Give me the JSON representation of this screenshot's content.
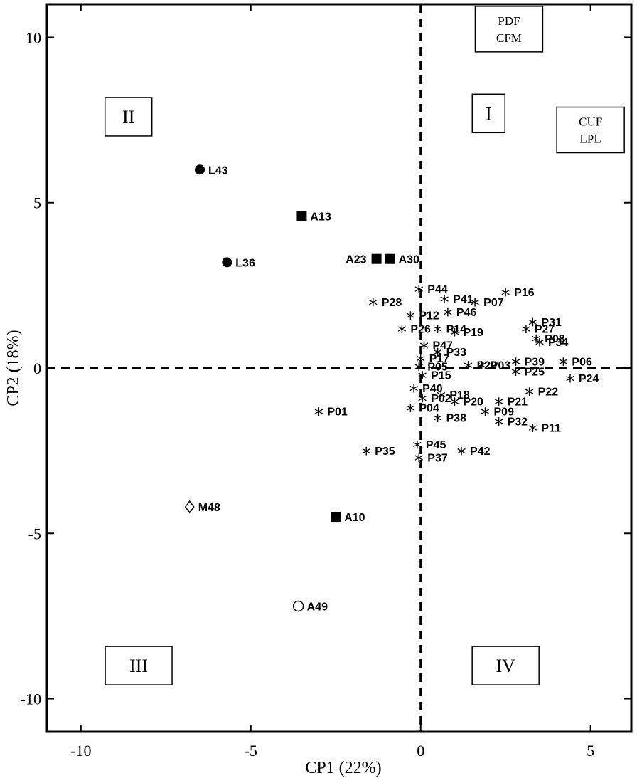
{
  "chart_data": {
    "type": "scatter",
    "xlabel": "CP1 (22%)",
    "ylabel": "CP2 (18%)",
    "xlim": [
      -11,
      6.2
    ],
    "ylim": [
      -11,
      11
    ],
    "xticks": [
      -10,
      -5,
      0,
      5
    ],
    "yticks": [
      -10,
      -5,
      0,
      5,
      10
    ],
    "xtick_labels": [
      "-10",
      "-5",
      "0",
      "5"
    ],
    "ytick_labels": [
      "-10",
      "-5",
      "0",
      "5",
      "10"
    ],
    "grid": false,
    "quadrants": [
      "I",
      "II",
      "III",
      "IV"
    ],
    "annotation_boxes": [
      {
        "lines": [
          "PDF",
          "CFM"
        ],
        "x": 2.6,
        "y": 10.25
      },
      {
        "lines": [
          "CUF",
          "LPL"
        ],
        "x": 5.0,
        "y": 7.2
      }
    ],
    "groups": [
      {
        "marker": "circle-filled",
        "points": [
          {
            "label": "L43",
            "x": -6.5,
            "y": 6.0
          },
          {
            "label": "L36",
            "x": -5.7,
            "y": 3.2
          }
        ]
      },
      {
        "marker": "square-filled",
        "points": [
          {
            "label": "A13",
            "x": -3.5,
            "y": 4.6
          },
          {
            "label": "A23",
            "x": -1.3,
            "y": 3.3
          },
          {
            "label": "A30",
            "x": -0.9,
            "y": 3.3
          },
          {
            "label": "A10",
            "x": -2.5,
            "y": -4.5
          }
        ]
      },
      {
        "marker": "diamond-open",
        "points": [
          {
            "label": "M48",
            "x": -6.8,
            "y": -4.2
          }
        ]
      },
      {
        "marker": "circle-open",
        "points": [
          {
            "label": "A49",
            "x": -3.6,
            "y": -7.2
          }
        ]
      },
      {
        "marker": "asterisk",
        "points": [
          {
            "label": "P01",
            "x": -3.0,
            "y": -1.3
          },
          {
            "label": "P35",
            "x": -1.6,
            "y": -2.5
          },
          {
            "label": "P28",
            "x": -1.4,
            "y": 2.0
          },
          {
            "label": "P44",
            "x": -0.05,
            "y": 2.4
          },
          {
            "label": "P12",
            "x": -0.3,
            "y": 1.6
          },
          {
            "label": "P26",
            "x": -0.55,
            "y": 1.2
          },
          {
            "label": "P47",
            "x": 0.1,
            "y": 0.7
          },
          {
            "label": "P17",
            "x": 0.0,
            "y": 0.3
          },
          {
            "label": "P05",
            "x": -0.05,
            "y": 0.05
          },
          {
            "label": "P15",
            "x": 0.05,
            "y": -0.2
          },
          {
            "label": "P40",
            "x": -0.2,
            "y": -0.6
          },
          {
            "label": "P02",
            "x": 0.05,
            "y": -0.9
          },
          {
            "label": "P04",
            "x": -0.3,
            "y": -1.2
          },
          {
            "label": "P38",
            "x": 0.5,
            "y": -1.5
          },
          {
            "label": "P45",
            "x": -0.1,
            "y": -2.3
          },
          {
            "label": "P37",
            "x": -0.05,
            "y": -2.7
          },
          {
            "label": "P41",
            "x": 0.7,
            "y": 2.1
          },
          {
            "label": "P46",
            "x": 0.8,
            "y": 1.7
          },
          {
            "label": "P19",
            "x": 1.0,
            "y": 1.1
          },
          {
            "label": "P14",
            "x": 0.5,
            "y": 1.2
          },
          {
            "label": "P33",
            "x": 0.5,
            "y": 0.5
          },
          {
            "label": "P29",
            "x": 1.4,
            "y": 0.1
          },
          {
            "label": "P18",
            "x": 0.6,
            "y": -0.8
          },
          {
            "label": "P42",
            "x": 1.2,
            "y": -2.5
          },
          {
            "label": "P07",
            "x": 1.6,
            "y": 2.0
          },
          {
            "label": "P16",
            "x": 2.5,
            "y": 2.3
          },
          {
            "label": "P03",
            "x": 1.8,
            "y": 0.1
          },
          {
            "label": "P25",
            "x": 2.8,
            "y": -0.1
          },
          {
            "label": "P20",
            "x": 1.0,
            "y": -1.0
          },
          {
            "label": "P21",
            "x": 2.3,
            "y": -1.0
          },
          {
            "label": "P09",
            "x": 1.9,
            "y": -1.3
          },
          {
            "label": "P32",
            "x": 2.3,
            "y": -1.6
          },
          {
            "label": "P11",
            "x": 3.3,
            "y": -1.8
          },
          {
            "label": "P22",
            "x": 3.2,
            "y": -0.7
          },
          {
            "label": "P39",
            "x": 2.8,
            "y": 0.2
          },
          {
            "label": "P34",
            "x": 3.5,
            "y": 0.8
          },
          {
            "label": "P31",
            "x": 3.3,
            "y": 1.4
          },
          {
            "label": "P27",
            "x": 3.1,
            "y": 1.2
          },
          {
            "label": "P08",
            "x": 3.4,
            "y": 0.9
          },
          {
            "label": "P06",
            "x": 4.2,
            "y": 0.2
          },
          {
            "label": "P24",
            "x": 4.4,
            "y": -0.3
          }
        ]
      }
    ]
  }
}
